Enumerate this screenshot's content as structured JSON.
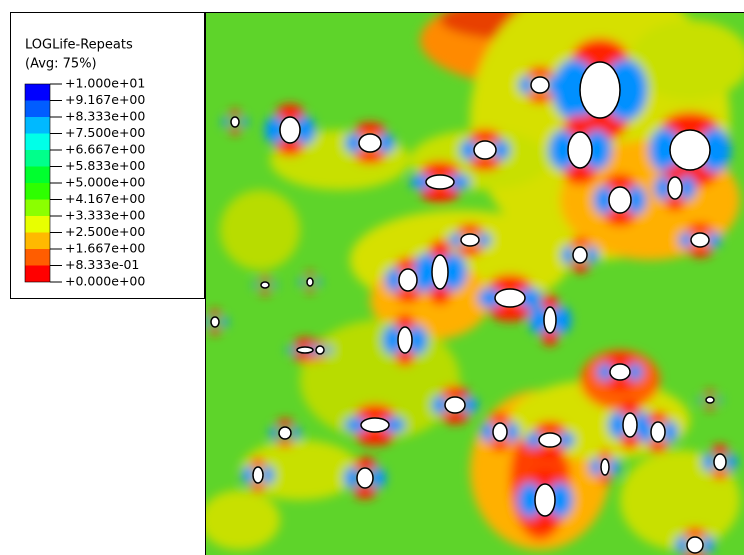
{
  "legend": {
    "title": "LOGLife-Repeats",
    "subtitle": "(Avg: 75%)",
    "labels": [
      "+1.000e+01",
      "+9.167e+00",
      "+8.333e+00",
      "+7.500e+00",
      "+6.667e+00",
      "+5.833e+00",
      "+5.000e+00",
      "+4.167e+00",
      "+3.333e+00",
      "+2.500e+00",
      "+1.667e+00",
      "+8.333e-01",
      "+0.000e+00"
    ],
    "colors": [
      "#0000ff",
      "#005dff",
      "#00b9ff",
      "#00ffe8",
      "#00ff8b",
      "#00ff2e",
      "#2eff00",
      "#8bff00",
      "#e8ff00",
      "#ffb900",
      "#ff5d00",
      "#ff0000"
    ]
  }
}
